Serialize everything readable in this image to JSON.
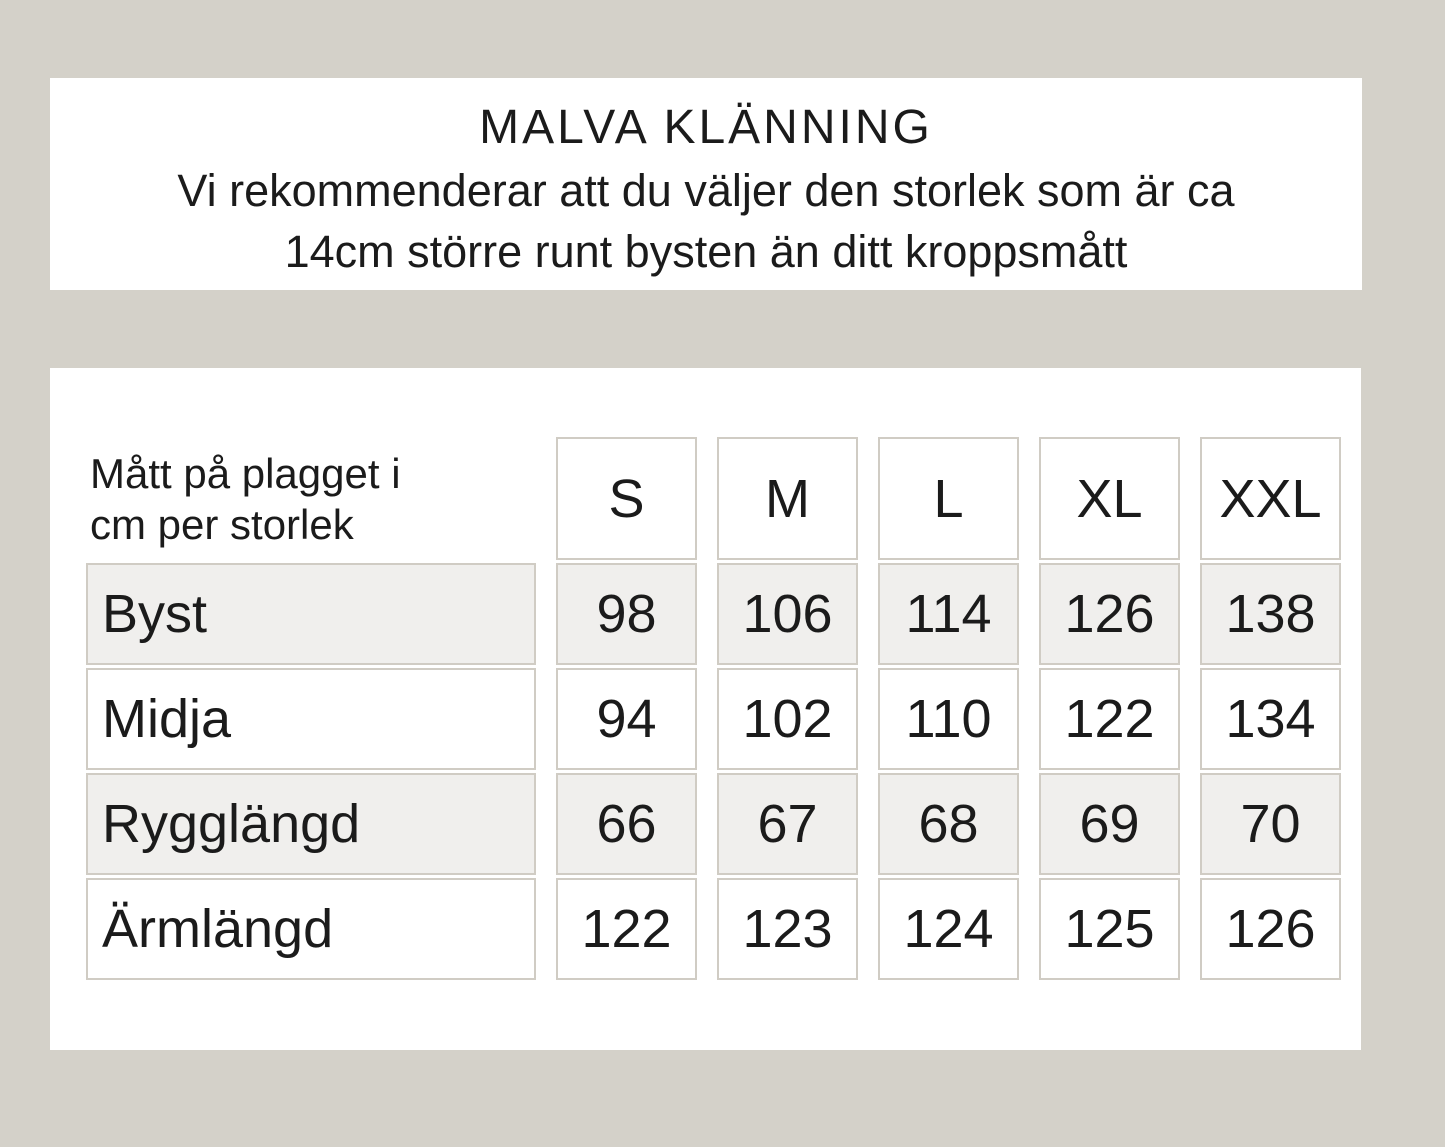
{
  "header": {
    "title": "MALVA KLÄNNING",
    "subtitle_line1": "Vi rekommenderar att du väljer den storlek som är ca",
    "subtitle_line2": "14cm större runt bysten än ditt kroppsmått"
  },
  "size_table": {
    "corner_label_line1": "Mått på plagget i",
    "corner_label_line2": "cm per storlek",
    "columns": [
      "S",
      "M",
      "L",
      "XL",
      "XXL"
    ],
    "rows": [
      {
        "label": "Byst",
        "values": [
          "98",
          "106",
          "114",
          "126",
          "138"
        ]
      },
      {
        "label": "Midja",
        "values": [
          "94",
          "102",
          "110",
          "122",
          "134"
        ]
      },
      {
        "label": "Rygglängd",
        "values": [
          "66",
          "67",
          "68",
          "69",
          "70"
        ]
      },
      {
        "label": "Ärmlängd",
        "values": [
          "122",
          "123",
          "124",
          "125",
          "126"
        ]
      }
    ]
  },
  "colors": {
    "page_background": "#d4d1c9",
    "card_background": "#ffffff",
    "cell_border": "#d0ccc4",
    "alt_row_background": "#f0efed",
    "text": "#1b1b1b"
  }
}
